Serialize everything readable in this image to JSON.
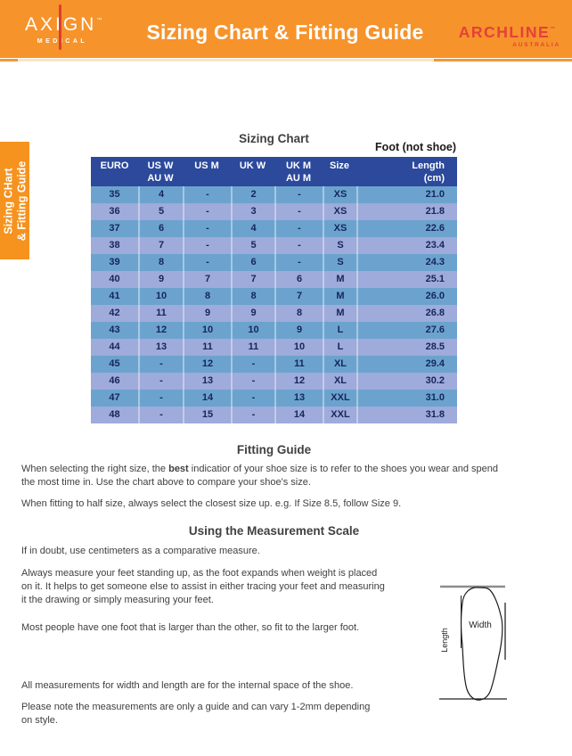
{
  "header": {
    "axign": {
      "name": "AXIGN",
      "tm": "™",
      "sub": "MEDICAL"
    },
    "title": "Sizing Chart & Fitting Guide",
    "archline": {
      "name": "ARCHLINE",
      "tm": "™",
      "sub": "AUSTRALIA"
    }
  },
  "side_tab": {
    "line1": "Sizing CHart",
    "line2": "& Fitting Guide"
  },
  "sizing_chart": {
    "heading": "Sizing Chart",
    "foot_note": "Foot (not shoe)",
    "table": {
      "header": [
        {
          "line1": "EURO",
          "line2": ""
        },
        {
          "line1": "US W",
          "line2": "AU W"
        },
        {
          "line1": "US M",
          "line2": ""
        },
        {
          "line1": "UK W",
          "line2": ""
        },
        {
          "line1": "UK M",
          "line2": "AU M"
        },
        {
          "line1": "Size",
          "line2": ""
        },
        {
          "line1": "Length",
          "line2": "(cm)"
        }
      ],
      "rows": [
        [
          "35",
          "4",
          "-",
          "2",
          "-",
          "XS",
          "21.0"
        ],
        [
          "36",
          "5",
          "-",
          "3",
          "-",
          "XS",
          "21.8"
        ],
        [
          "37",
          "6",
          "-",
          "4",
          "-",
          "XS",
          "22.6"
        ],
        [
          "38",
          "7",
          "-",
          "5",
          "-",
          "S",
          "23.4"
        ],
        [
          "39",
          "8",
          "-",
          "6",
          "-",
          "S",
          "24.3"
        ],
        [
          "40",
          "9",
          "7",
          "7",
          "6",
          "M",
          "25.1"
        ],
        [
          "41",
          "10",
          "8",
          "8",
          "7",
          "M",
          "26.0"
        ],
        [
          "42",
          "11",
          "9",
          "9",
          "8",
          "M",
          "26.8"
        ],
        [
          "43",
          "12",
          "10",
          "10",
          "9",
          "L",
          "27.6"
        ],
        [
          "44",
          "13",
          "11",
          "11",
          "10",
          "L",
          "28.5"
        ],
        [
          "45",
          "-",
          "12",
          "-",
          "11",
          "XL",
          "29.4"
        ],
        [
          "46",
          "-",
          "13",
          "-",
          "12",
          "XL",
          "30.2"
        ],
        [
          "47",
          "-",
          "14",
          "-",
          "13",
          "XXL",
          "31.0"
        ],
        [
          "48",
          "-",
          "15",
          "-",
          "14",
          "XXL",
          "31.8"
        ]
      ]
    }
  },
  "fitting_guide": {
    "heading": "Fitting Guide",
    "p1_pre": "When selecting the right size, the ",
    "p1_bold": "best",
    "p1_post": " indicatior of your shoe size is to refer to the shoes you wear and spend\nthe most time in. Use the chart above to compare your shoe's size.",
    "p2": "When fitting to half size, always select the closest size up. e.g. If Size 8.5, follow Size 9."
  },
  "measurement_scale": {
    "heading": "Using the Measurement Scale",
    "p1": "If in doubt, use centimeters as a comparative measure.",
    "p2": "Always measure your feet standing up, as the foot expands when weight is placed\non it. It helps to get someone else to assist in either tracing your feet and measuring\nit the drawing or simply measuring your feet.",
    "p3": "Most people have one foot that is larger than the other, so fit to the larger foot.",
    "p4": "All measurements for width and length are for the internal space of the shoe.",
    "p5": "Please note the measurements are only a guide and can vary 1-2mm depending\non style."
  },
  "diagram": {
    "width_label": "Width",
    "length_label": "Length"
  },
  "colors": {
    "banner_orange": "#F6932B",
    "tab_orange": "#F6921E",
    "rule_pale": "#FBE4C6",
    "table_header_blue": "#2C499B",
    "row_teal": "#6CA3CE",
    "row_periwinkle": "#9EABDB",
    "cell_text_navy": "#16265C",
    "logo_red": "#E5403A"
  }
}
